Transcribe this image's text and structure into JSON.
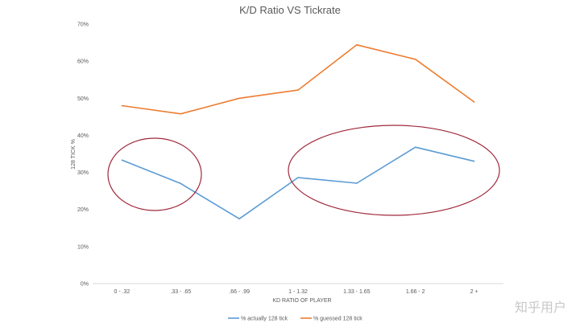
{
  "chart_data": {
    "type": "line",
    "title": "K/D Ratio VS Tickrate",
    "xlabel": "KD RATIO OF PLAYER",
    "ylabel": "128 TICK %",
    "categories": [
      "0 - .32",
      ".33 - .65",
      ".66 - .99",
      "1 - 1.32",
      "1.33 - 1.65",
      "1.66 - 2",
      "2 +"
    ],
    "y_ticks": [
      "0%",
      "10%",
      "20%",
      "30%",
      "40%",
      "50%",
      "60%",
      "70%"
    ],
    "ylim": [
      0,
      70
    ],
    "grid": false,
    "legend_position": "bottom",
    "series": [
      {
        "name": "% actually 128 tick",
        "color": "#5b9bd5",
        "values": [
          33.3,
          27,
          17.5,
          28.6,
          27.1,
          36.8,
          33
        ]
      },
      {
        "name": "% guessed 128 tick",
        "color": "#ed7d31",
        "values": [
          48,
          45.8,
          50,
          52.2,
          64.4,
          60.5,
          49
        ]
      }
    ],
    "annotations": [
      {
        "type": "ellipse",
        "color": "#a0283c",
        "around": "first two points of % actually 128 tick"
      },
      {
        "type": "ellipse",
        "color": "#a0283c",
        "around": "last four points of % actually 128 tick"
      }
    ]
  },
  "watermark": "知乎用户"
}
